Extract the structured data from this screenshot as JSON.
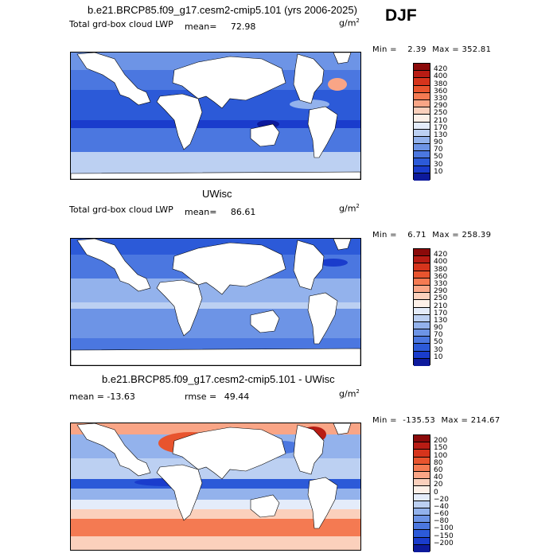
{
  "season": "DJF",
  "chart_data": [
    {
      "type": "heatmap",
      "title": "b.e21.BRCP85.f09_g17.cesm2-cmip5.101 (yrs 2006-2025)",
      "left_label": "Total grd-box cloud LWP",
      "stat_label": "mean=",
      "stat_value": "72.98",
      "units": "g/m",
      "units_exp": "2",
      "min_label": "Min =",
      "min_value": "2.39",
      "max_label": "Max =",
      "max_value": "352.81",
      "levels": [
        "420",
        "400",
        "380",
        "360",
        "330",
        "290",
        "250",
        "210",
        "170",
        "130",
        "90",
        "70",
        "50",
        "30",
        "10"
      ],
      "colors": [
        "#8b0a0a",
        "#b81c14",
        "#d6341c",
        "#e8542e",
        "#f47a52",
        "#f9a586",
        "#fbd0bc",
        "#fdf0e8",
        "#e4ecfa",
        "#bcd0f2",
        "#93b2ec",
        "#6d94e6",
        "#4b77e0",
        "#2c5ad8",
        "#1a3ccc",
        "#0d1a9c"
      ]
    },
    {
      "type": "heatmap",
      "title": "UWisc",
      "left_label": "Total grd-box cloud LWP",
      "stat_label": "mean=",
      "stat_value": "86.61",
      "units": "g/m",
      "units_exp": "2",
      "min_label": "Min =",
      "min_value": "6.71",
      "max_label": "Max =",
      "max_value": "258.39",
      "levels": [
        "420",
        "400",
        "380",
        "360",
        "330",
        "290",
        "250",
        "210",
        "170",
        "130",
        "90",
        "70",
        "50",
        "30",
        "10"
      ],
      "colors": [
        "#8b0a0a",
        "#b81c14",
        "#d6341c",
        "#e8542e",
        "#f47a52",
        "#f9a586",
        "#fbd0bc",
        "#fdf0e8",
        "#e4ecfa",
        "#bcd0f2",
        "#93b2ec",
        "#6d94e6",
        "#4b77e0",
        "#2c5ad8",
        "#1a3ccc",
        "#0d1a9c"
      ]
    },
    {
      "type": "heatmap",
      "title": "b.e21.BRCP85.f09_g17.cesm2-cmip5.101 - UWisc",
      "stat_label": "mean =",
      "stat_value": "-13.63",
      "rmse_label": "rmse =",
      "rmse_value": "49.44",
      "units": "g/m",
      "units_exp": "2",
      "min_label": "Min =",
      "min_value": "-135.53",
      "max_label": "Max =",
      "max_value": "214.67",
      "levels": [
        "200",
        "150",
        "100",
        "80",
        "60",
        "40",
        "20",
        "0",
        "−20",
        "−40",
        "−60",
        "−80",
        "−100",
        "−150",
        "−200"
      ],
      "colors": [
        "#8b0a0a",
        "#b81c14",
        "#d6341c",
        "#e8542e",
        "#f47a52",
        "#f9a586",
        "#fbd0bc",
        "#fdf0e8",
        "#e4ecfa",
        "#bcd0f2",
        "#93b2ec",
        "#6d94e6",
        "#4b77e0",
        "#2c5ad8",
        "#1a3ccc",
        "#0d1a9c"
      ]
    }
  ]
}
